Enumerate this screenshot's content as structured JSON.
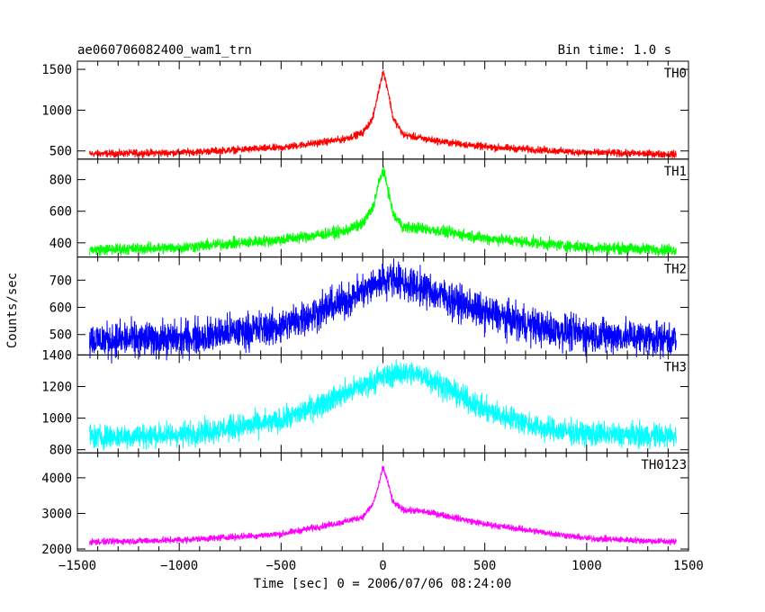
{
  "header": {
    "title": "ae060706082400_wam1_trn",
    "bin_time": "Bin time: 1.0 s"
  },
  "axes": {
    "ylabel": "Counts/sec",
    "xlabel": "Time [sec] 0 = 2006/07/06 08:24:00"
  },
  "chart_data": {
    "type": "line",
    "xlim": [
      -1500,
      1500
    ],
    "x_ticks": [
      -1500,
      -1000,
      -500,
      0,
      500,
      1000,
      1500
    ],
    "x_tick_labels": [
      "−1500",
      "−1000",
      "−500",
      "0",
      "500",
      "1000",
      "1500"
    ],
    "data_x_range": [
      -1440,
      1440
    ],
    "bin_time_s": 1.0,
    "grid": false,
    "series": [
      {
        "name": "TH0",
        "color": "#ff0000",
        "ylim": [
          400,
          1600
        ],
        "y_ticks": [
          500,
          1000,
          1500
        ],
        "x": [
          -1440,
          -1000,
          -500,
          -200,
          -100,
          -50,
          -20,
          0,
          20,
          50,
          100,
          200,
          300,
          500,
          1000,
          1440
        ],
        "y": [
          465,
          480,
          540,
          640,
          720,
          900,
          1250,
          1480,
          1300,
          900,
          700,
          650,
          610,
          550,
          480,
          460
        ],
        "noise": 22
      },
      {
        "name": "TH1",
        "color": "#00ff00",
        "ylim": [
          310,
          930
        ],
        "y_ticks": [
          400,
          600,
          800
        ],
        "x": [
          -1440,
          -1000,
          -500,
          -200,
          -100,
          -50,
          -20,
          0,
          20,
          50,
          100,
          200,
          300,
          500,
          1000,
          1440
        ],
        "y": [
          355,
          370,
          420,
          470,
          520,
          620,
          780,
          860,
          770,
          580,
          500,
          490,
          470,
          430,
          370,
          355
        ],
        "noise": 18
      },
      {
        "name": "TH2",
        "color": "#0000ff",
        "ylim": [
          425,
          785
        ],
        "y_ticks": [
          500,
          600,
          700
        ],
        "x": [
          -1440,
          -1000,
          -500,
          -200,
          0,
          50,
          100,
          200,
          300,
          500,
          800,
          1000,
          1440
        ],
        "y": [
          480,
          485,
          530,
          620,
          700,
          710,
          690,
          670,
          640,
          580,
          520,
          500,
          485
        ],
        "noise": 32
      },
      {
        "name": "TH3",
        "color": "#00ffff",
        "ylim": [
          780,
          1400
        ],
        "y_ticks": [
          800,
          1000,
          1200,
          1400
        ],
        "x": [
          -1440,
          -1000,
          -500,
          -200,
          0,
          100,
          200,
          300,
          500,
          800,
          1000,
          1440
        ],
        "y": [
          880,
          895,
          980,
          1150,
          1260,
          1290,
          1270,
          1200,
          1050,
          930,
          900,
          885
        ],
        "noise": 38
      },
      {
        "name": "TH0123",
        "color": "#ff00ff",
        "ylim": [
          1950,
          4700
        ],
        "y_ticks": [
          2000,
          3000,
          4000
        ],
        "x": [
          -1440,
          -1000,
          -500,
          -200,
          -100,
          -50,
          -20,
          0,
          20,
          50,
          100,
          200,
          300,
          500,
          1000,
          1440
        ],
        "y": [
          2200,
          2250,
          2420,
          2750,
          2900,
          3250,
          3800,
          4300,
          3950,
          3300,
          3100,
          3050,
          2950,
          2700,
          2300,
          2200
        ],
        "noise": 45
      }
    ]
  }
}
